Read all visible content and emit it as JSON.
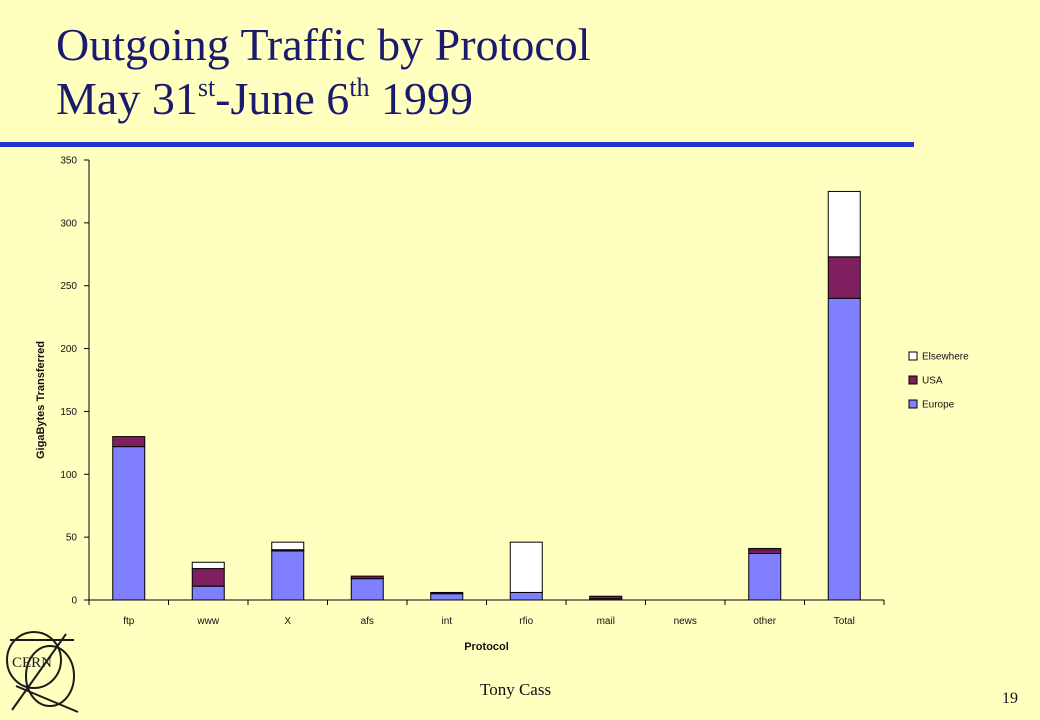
{
  "slide": {
    "title_line1": "Outgoing Traffic by Protocol",
    "title_line2_a": "May 31",
    "title_line2_sup1": "st",
    "title_line2_b": "-June 6",
    "title_line2_sup2": "th",
    "title_line2_c": " 1999",
    "author": "Tony Cass",
    "page_number": "19",
    "logo_text": "CERN",
    "rule_color": "#2233cc"
  },
  "chart_data": {
    "type": "bar",
    "stacked": true,
    "title": "",
    "xlabel": "Protocol",
    "ylabel": "GigaBytes Transferred",
    "ylim": [
      0,
      350
    ],
    "yticks": [
      0,
      50,
      100,
      150,
      200,
      250,
      300,
      350
    ],
    "grid": false,
    "legend_position": "right",
    "categories": [
      "ftp",
      "www",
      "X",
      "afs",
      "int",
      "rfio",
      "mail",
      "news",
      "other",
      "Total"
    ],
    "series": [
      {
        "name": "Europe",
        "color": "#8080ff",
        "values": [
          122,
          11,
          39,
          17,
          5,
          6,
          1,
          0,
          37,
          240
        ]
      },
      {
        "name": "USA",
        "color": "#7f1f5f",
        "values": [
          8,
          14,
          1,
          2,
          1,
          0,
          2,
          0,
          3,
          33
        ]
      },
      {
        "name": "Elsewhere",
        "color": "#ffffff",
        "values": [
          0,
          5,
          6,
          0,
          0,
          40,
          0,
          0,
          1,
          52
        ]
      }
    ]
  }
}
